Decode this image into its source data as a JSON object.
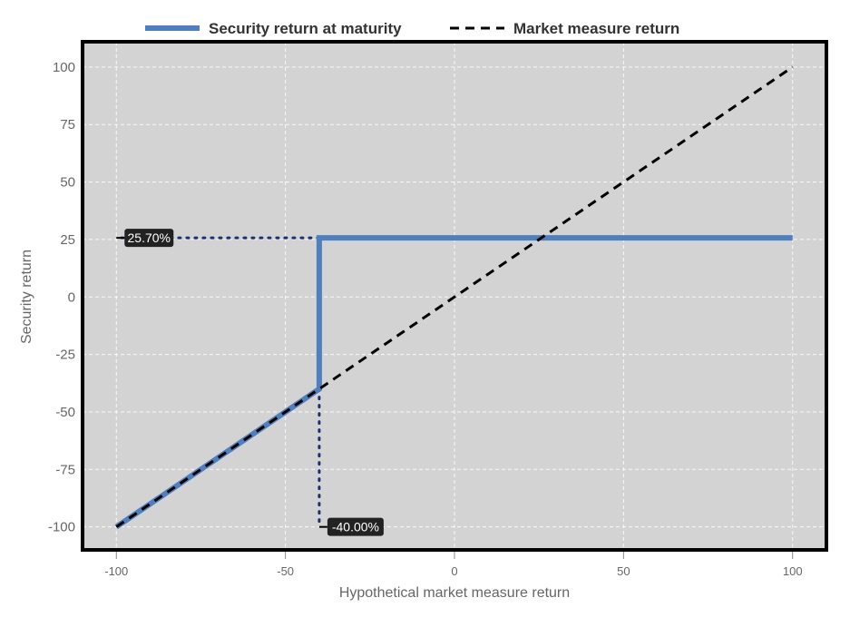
{
  "chart_data": {
    "type": "line",
    "xlabel": "Hypothetical market measure return",
    "ylabel": "Security return",
    "xlim": [
      -110,
      110
    ],
    "ylim": [
      -110,
      111
    ],
    "x_ticks": [
      -100,
      -50,
      0,
      50,
      100
    ],
    "y_ticks": [
      100,
      75,
      50,
      25,
      0,
      -25,
      -50,
      -75,
      -100
    ],
    "grid": true,
    "legend_position": "top",
    "background_color": "#d3d3d3",
    "series": [
      {
        "name": "Security return at maturity",
        "color": "#4f7fbf",
        "style": "solid",
        "points": [
          [
            -100,
            -100
          ],
          [
            -40,
            -40
          ],
          [
            -40,
            25.7
          ],
          [
            100,
            25.7
          ]
        ]
      },
      {
        "name": "Market measure return",
        "color": "#000000",
        "style": "dashed",
        "points": [
          [
            -100,
            -100
          ],
          [
            100,
            100
          ]
        ]
      }
    ],
    "annotations": [
      {
        "label": "25.70%",
        "x": -100,
        "y": 25.7,
        "guide_from": [
          -40,
          25.7
        ]
      },
      {
        "label": "-40.00%",
        "x": -40,
        "y": -100,
        "guide_from": [
          -40,
          -40
        ]
      }
    ]
  }
}
